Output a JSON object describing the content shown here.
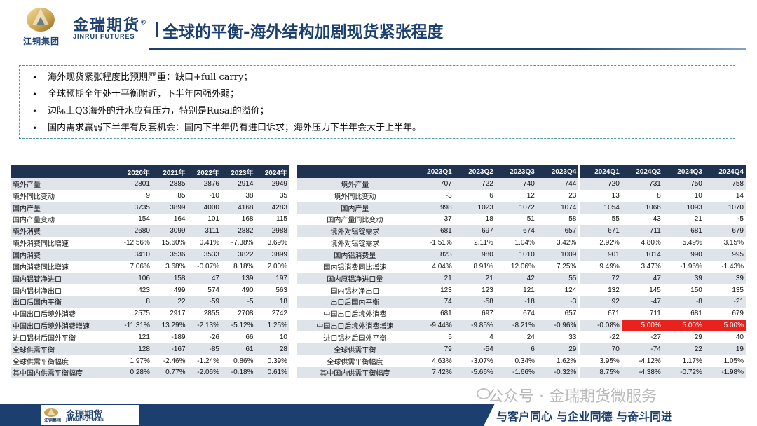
{
  "header": {
    "logo_sub": "江铜集团",
    "brand_cn": "金瑞期货",
    "brand_reg": "®",
    "brand_en": "JINRUI FUTURES",
    "title": "全球的平衡-海外结构加剧现货紧张程度"
  },
  "bullets": [
    "海外现货紧张程度比预期严重：缺口+full carry；",
    "全球预期全年处于平衡附近，下半年内强外弱；",
    "边际上Q3海外的升水应有压力，特别是Rusal的溢价；",
    "国内需求赢弱下半年有反套机会：国内下半年仍有进口诉求；海外压力下半年会大于上半年。"
  ],
  "bullet_symbol": "•",
  "left_table": {
    "headers": [
      "",
      "2020年",
      "2021年",
      "2022年",
      "2023年",
      "2024年"
    ],
    "rows": [
      {
        "label": "境外产量",
        "values": [
          "2801",
          "2885",
          "2876",
          "2914",
          "2949"
        ]
      },
      {
        "label": "境外同比变动",
        "values": [
          "9",
          "85",
          "-10",
          "38",
          "35"
        ]
      },
      {
        "label": "国内产量",
        "values": [
          "3735",
          "3899",
          "4000",
          "4168",
          "4283"
        ]
      },
      {
        "label": "国内产量变动",
        "values": [
          "154",
          "164",
          "101",
          "168",
          "115"
        ]
      },
      {
        "label": "境外消费",
        "values": [
          "2680",
          "3099",
          "3111",
          "2882",
          "2988"
        ]
      },
      {
        "label": "境外消费同比增速",
        "values": [
          "-12.56%",
          "15.60%",
          "0.41%",
          "-7.38%",
          "3.69%"
        ]
      },
      {
        "label": "国内消费",
        "values": [
          "3410",
          "3536",
          "3533",
          "3822",
          "3899"
        ]
      },
      {
        "label": "国内消费同比增速",
        "values": [
          "7.06%",
          "3.68%",
          "-0.07%",
          "8.18%",
          "2.00%"
        ]
      },
      {
        "label": "国内铝锭净进口",
        "values": [
          "106",
          "158",
          "47",
          "139",
          "197"
        ]
      },
      {
        "label": "国内铝材净出口",
        "values": [
          "423",
          "499",
          "574",
          "490",
          "563"
        ]
      },
      {
        "label": "出口后国内平衡",
        "values": [
          "8",
          "22",
          "-59",
          "-5",
          "18"
        ]
      },
      {
        "label": "中国出口后境外消费",
        "values": [
          "2575",
          "2917",
          "2855",
          "2708",
          "2742"
        ]
      },
      {
        "label": "中国出口后境外消费增速",
        "values": [
          "-11.31%",
          "13.29%",
          "-2.13%",
          "-5.12%",
          "1.25%"
        ]
      },
      {
        "label": "进口铝材后国外平衡",
        "values": [
          "121",
          "-189",
          "-26",
          "66",
          "10"
        ]
      },
      {
        "label": "全球供需平衡",
        "values": [
          "128",
          "-167",
          "-85",
          "61",
          "28"
        ]
      },
      {
        "label": "全球供需平衡幅度",
        "values": [
          "1.97%",
          "-2.46%",
          "-1.24%",
          "0.86%",
          "0.39%"
        ]
      },
      {
        "label": "其中国内供需平衡幅度",
        "values": [
          "0.28%",
          "0.77%",
          "-2.06%",
          "-0.18%",
          "0.61%"
        ]
      }
    ]
  },
  "right_table": {
    "headers": [
      "",
      "2023Q1",
      "2023Q2",
      "2023Q3",
      "2023Q4",
      "2024Q1",
      "2024Q2",
      "2024Q3",
      "2024Q4"
    ],
    "rows": [
      {
        "label": "境外产量",
        "values": [
          "707",
          "722",
          "740",
          "744",
          "720",
          "731",
          "750",
          "758"
        ]
      },
      {
        "label": "境外同比变动",
        "values": [
          "-3",
          "6",
          "12",
          "23",
          "13",
          "8",
          "10",
          "14"
        ]
      },
      {
        "label": "国内产量",
        "values": [
          "998",
          "1023",
          "1072",
          "1074",
          "1054",
          "1066",
          "1093",
          "1070"
        ]
      },
      {
        "label": "国内产量同比变动",
        "values": [
          "37",
          "18",
          "51",
          "58",
          "55",
          "43",
          "21",
          "-5"
        ]
      },
      {
        "label": "境外对铝锭需求",
        "values": [
          "681",
          "697",
          "674",
          "657",
          "671",
          "711",
          "681",
          "679"
        ]
      },
      {
        "label": "境外对铝锭需求",
        "values": [
          "-1.51%",
          "2.11%",
          "1.04%",
          "3.42%",
          "2.92%",
          "4.80%",
          "5.49%",
          "3.15%"
        ]
      },
      {
        "label": "国内铝消费量",
        "values": [
          "823",
          "980",
          "1010",
          "1009",
          "901",
          "1014",
          "990",
          "995"
        ]
      },
      {
        "label": "国内铝消费同比增速",
        "values": [
          "4.04%",
          "8.91%",
          "12.06%",
          "7.25%",
          "9.49%",
          "3.47%",
          "-1.96%",
          "-1.43%"
        ]
      },
      {
        "label": "国内原铝净进口量",
        "values": [
          "21",
          "21",
          "42",
          "55",
          "72",
          "47",
          "39",
          "39"
        ]
      },
      {
        "label": "国内铝材净出口",
        "values": [
          "123",
          "123",
          "121",
          "124",
          "132",
          "145",
          "150",
          "135"
        ]
      },
      {
        "label": "出口后国内平衡",
        "values": [
          "74",
          "-58",
          "-18",
          "-3",
          "92",
          "-47",
          "-8",
          "-21"
        ]
      },
      {
        "label": "中国出口后境外消费",
        "values": [
          "681",
          "697",
          "674",
          "657",
          "671",
          "711",
          "681",
          "679"
        ]
      },
      {
        "label": "中国出口后境外消费增速",
        "values": [
          "-9.44%",
          "-9.85%",
          "-8.21%",
          "-0.96%",
          "-0.08%",
          "5.00%",
          "5.00%",
          "5.00%"
        ],
        "highlight": [
          5,
          6,
          7
        ]
      },
      {
        "label": "进口铝材后国外平衡",
        "values": [
          "5",
          "4",
          "24",
          "33",
          "-22",
          "-27",
          "29",
          "40"
        ]
      },
      {
        "label": "全球供需平衡",
        "values": [
          "79",
          "-54",
          "6",
          "29",
          "70",
          "-74",
          "22",
          "19"
        ]
      },
      {
        "label": "全球供需平衡幅度",
        "values": [
          "4.63%",
          "-3.07%",
          "0.34%",
          "1.62%",
          "3.95%",
          "-4.12%",
          "1.17%",
          "1.05%"
        ]
      },
      {
        "label": "其中国内供需平衡幅度",
        "values": [
          "7.42%",
          "-5.66%",
          "-1.66%",
          "-0.32%",
          "8.75%",
          "-4.38%",
          "-0.72%",
          "-1.98%"
        ]
      }
    ]
  },
  "highlight_color": "#e8231e",
  "header_color": "#1f3350",
  "brand_color": "#1b3f6e",
  "watermark": "公众号 · 金瑞期货微服务",
  "footer": {
    "logo_cn": "金瑞期货",
    "logo_en": "JINRUI FUTURES",
    "logo_sub": "江铜集团",
    "slogan": "与客户同心  与企业同德  与奋斗同进"
  }
}
